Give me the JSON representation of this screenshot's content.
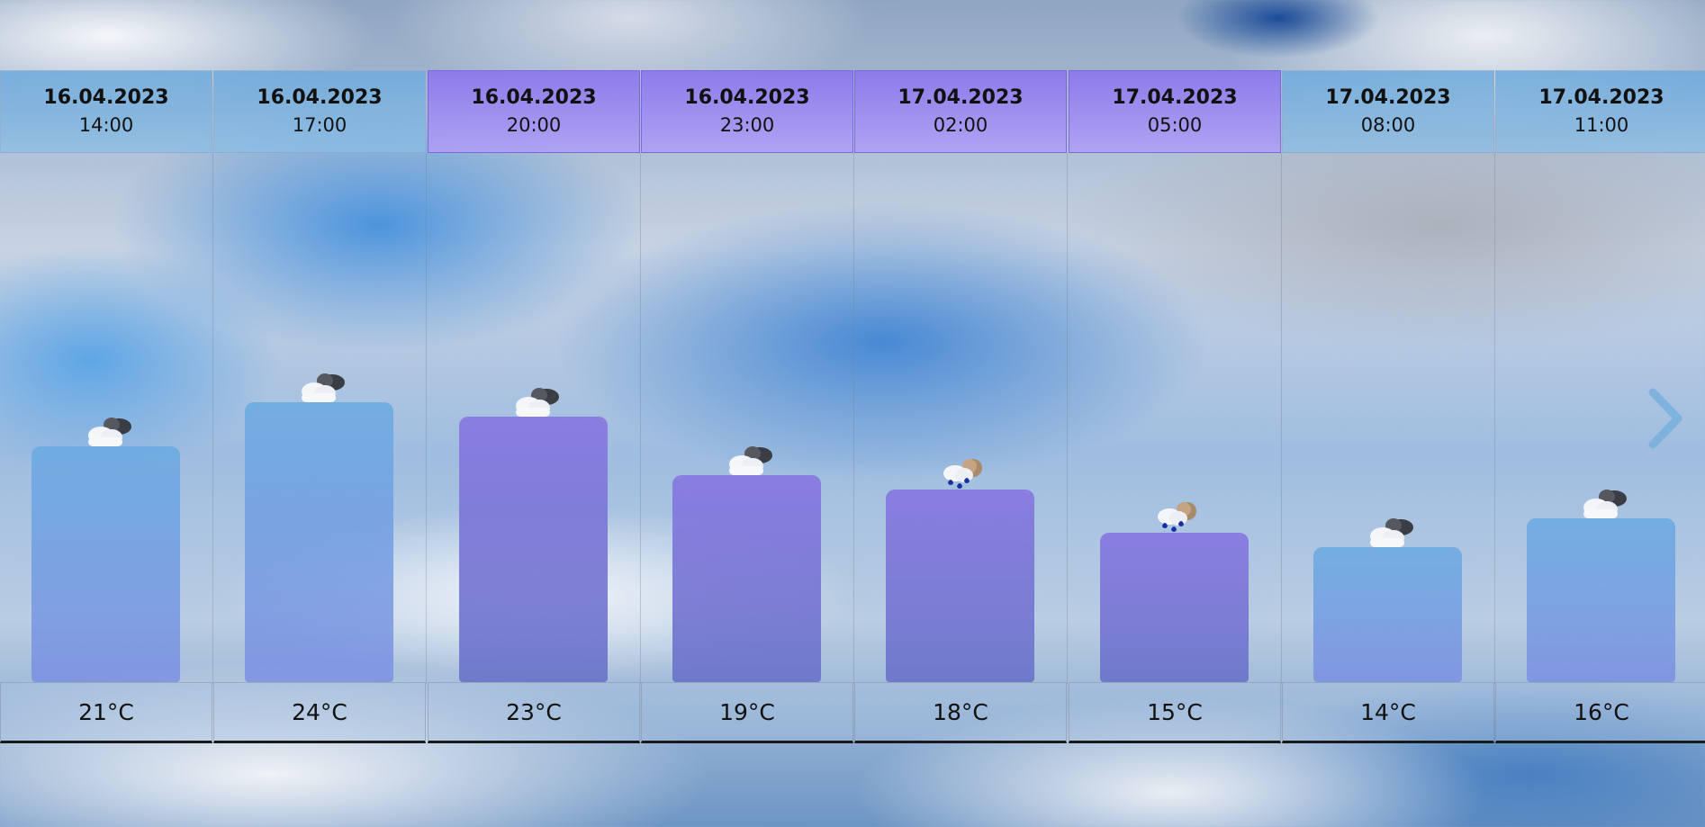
{
  "forecast": [
    {
      "date": "16.04.2023",
      "time": "20:00",
      "temp": "23°C",
      "value": 23,
      "icon": "cloud-moon-icon",
      "period": "night"
    },
    {
      "date": "16.04.2023",
      "time": "14:00",
      "temp": "21°C",
      "value": 21,
      "icon": "partly-cloudy-icon",
      "period": "day"
    },
    {
      "date": "16.04.2023",
      "time": "17:00",
      "temp": "24°C",
      "value": 24,
      "icon": "partly-cloudy-icon",
      "period": "day"
    },
    {
      "date": "16.04.2023",
      "time": "23:00",
      "temp": "19°C",
      "value": 19,
      "icon": "cloud-moon-icon",
      "period": "night"
    },
    {
      "date": "17.04.2023",
      "time": "02:00",
      "temp": "18°C",
      "value": 18,
      "icon": "rain-moon-icon",
      "period": "night"
    },
    {
      "date": "17.04.2023",
      "time": "05:00",
      "temp": "15°C",
      "value": 15,
      "icon": "rain-moon-icon",
      "period": "night"
    },
    {
      "date": "17.04.2023",
      "time": "08:00",
      "temp": "14°C",
      "value": 14,
      "icon": "partly-cloudy-icon",
      "period": "day"
    },
    {
      "date": "17.04.2023",
      "time": "11:00",
      "temp": "16°C",
      "value": 16,
      "icon": "partly-cloudy-icon",
      "period": "day"
    }
  ],
  "navigation": {
    "next_icon": "chevron-right-icon"
  }
}
